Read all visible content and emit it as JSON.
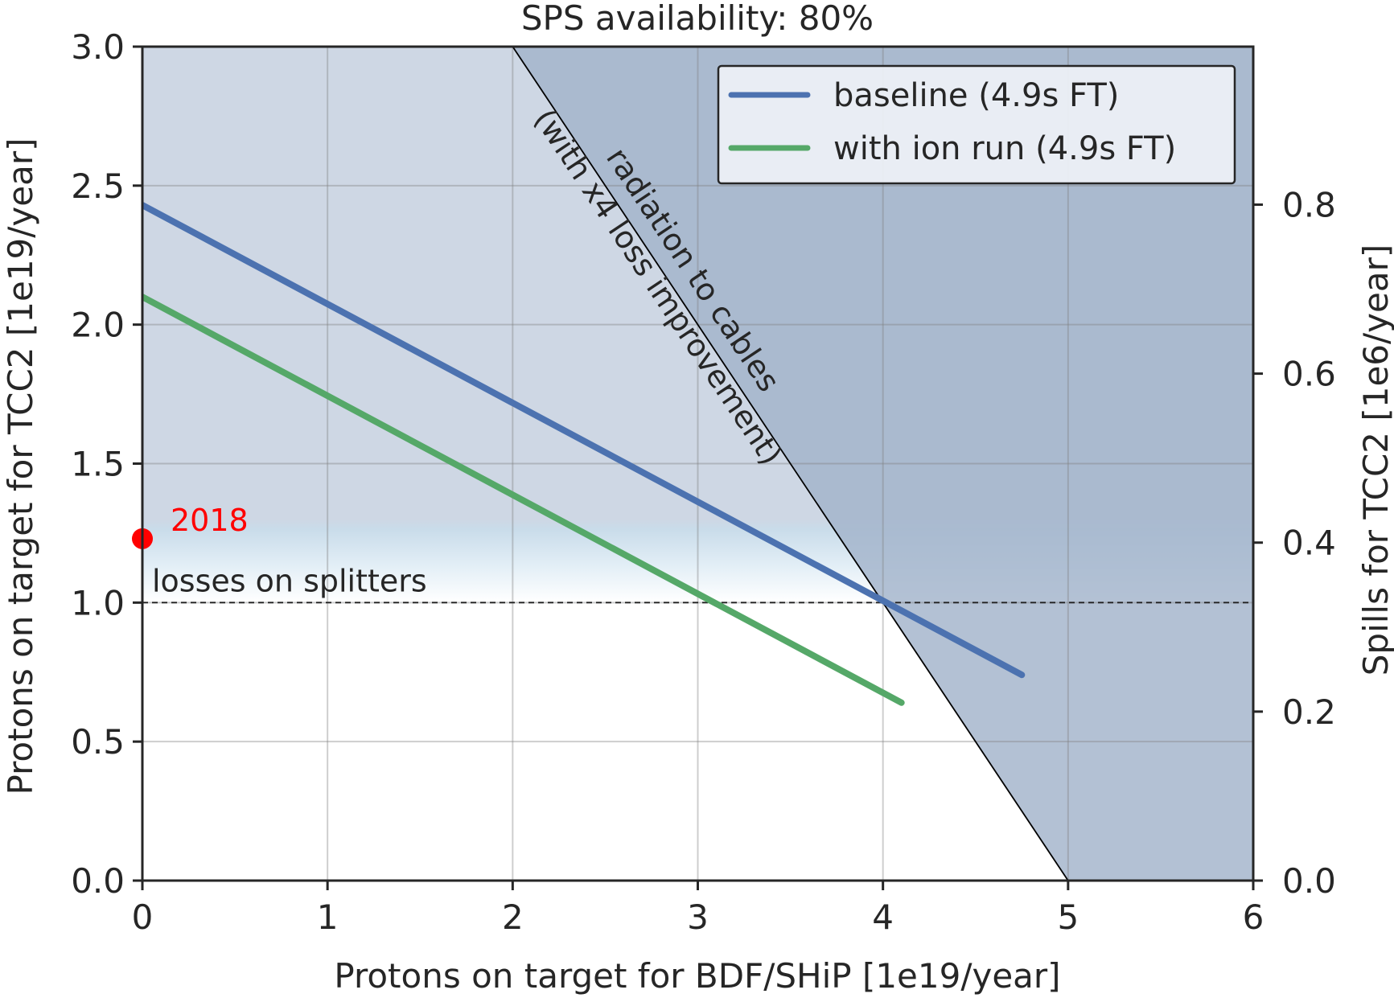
{
  "chart_data": {
    "type": "line",
    "title": "SPS availability: 80%",
    "xlabel": "Protons on target for BDF/SHiP [1e19/year]",
    "ylabel": "Protons on target for TCC2 [1e19/year]",
    "y2label": "Spills for TCC2 [1e6/year]",
    "xlim": [
      0,
      6
    ],
    "ylim": [
      0,
      3.0
    ],
    "y2lim": [
      0,
      0.987
    ],
    "xticks": [
      "0",
      "1",
      "2",
      "3",
      "4",
      "5",
      "6"
    ],
    "xtick_values": [
      0,
      1,
      2,
      3,
      4,
      5,
      6
    ],
    "yticks": [
      "0.0",
      "0.5",
      "1.0",
      "1.5",
      "2.0",
      "2.5",
      "3.0"
    ],
    "ytick_values": [
      0,
      0.5,
      1.0,
      1.5,
      2.0,
      2.5,
      3.0
    ],
    "y2ticks": [
      "0.0",
      "0.2",
      "0.4",
      "0.6",
      "0.8"
    ],
    "y2tick_values": [
      0,
      0.2,
      0.4,
      0.6,
      0.8
    ],
    "grid": true,
    "legend_position": "top-right",
    "series": [
      {
        "name": "baseline (4.9s FT)",
        "color": "#4c72b0",
        "x": [
          0,
          4.75
        ],
        "y": [
          2.43,
          0.74
        ]
      },
      {
        "name": "with ion run (4.9s FT)",
        "color": "#55a868",
        "x": [
          0,
          4.1
        ],
        "y": [
          2.1,
          0.64
        ]
      }
    ],
    "cables_limit": {
      "label_line1": "radiation to cables",
      "label_line2": "(with x4 loss improvement)",
      "x": [
        2,
        5
      ],
      "y": [
        3.0,
        0.0
      ],
      "color": "#a2b3cb"
    },
    "splitter_limit": {
      "label": "losses on splitters",
      "y": 1.0,
      "color": "#ced7e4"
    },
    "point": {
      "label": "2018",
      "x": 0,
      "y": 1.23,
      "color": "#ff0000"
    }
  }
}
